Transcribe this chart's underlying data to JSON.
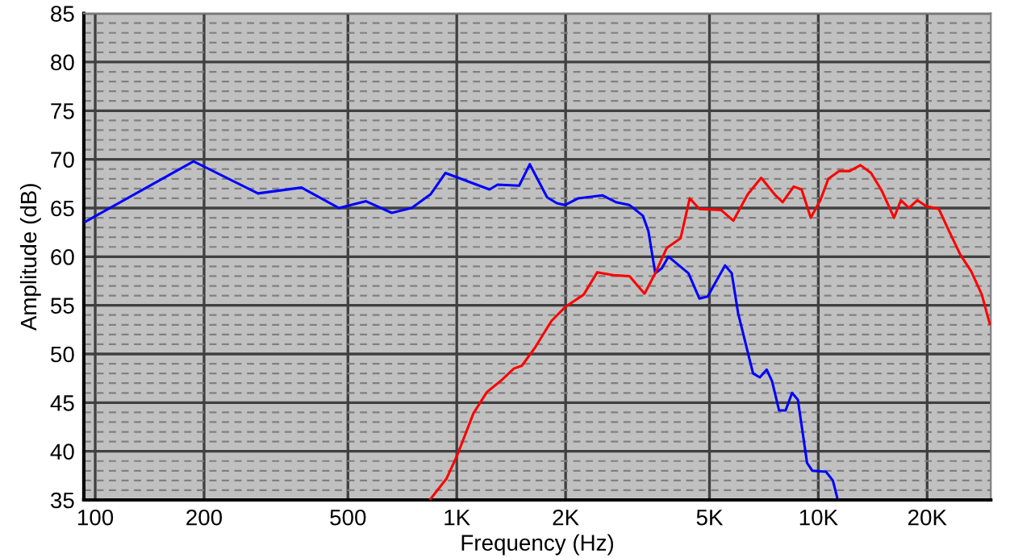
{
  "chart_data": {
    "type": "line",
    "xlabel": "Frequency (Hz)",
    "ylabel": "Amplitude (dB)",
    "log": "x",
    "xlim": [
      93,
      30000
    ],
    "ylim": [
      35,
      85
    ],
    "xticks": [
      100,
      200,
      500,
      {
        "value": 1000,
        "label": "1K"
      },
      {
        "value": 2000,
        "label": "2K"
      },
      {
        "value": 5000,
        "label": "5K"
      },
      {
        "value": 10000,
        "label": "10K"
      },
      {
        "value": 20000,
        "label": "20K"
      }
    ],
    "yticks": [
      35,
      {
        "value": 36,
        "label": null
      },
      {
        "value": 37,
        "label": null
      },
      {
        "value": 38,
        "label": null
      },
      {
        "value": 39,
        "label": null
      },
      40,
      {
        "value": 41,
        "label": null
      },
      {
        "value": 42,
        "label": null
      },
      {
        "value": 43,
        "label": null
      },
      {
        "value": 44,
        "label": null
      },
      45,
      {
        "value": 46,
        "label": null
      },
      {
        "value": 47,
        "label": null
      },
      {
        "value": 48,
        "label": null
      },
      {
        "value": 49,
        "label": null
      },
      50,
      {
        "value": 51,
        "label": null
      },
      {
        "value": 52,
        "label": null
      },
      {
        "value": 53,
        "label": null
      },
      {
        "value": 54,
        "label": null
      },
      55,
      {
        "value": 56,
        "label": null
      },
      {
        "value": 57,
        "label": null
      },
      {
        "value": 58,
        "label": null
      },
      {
        "value": 59,
        "label": null
      },
      60,
      {
        "value": 61,
        "label": null
      },
      {
        "value": 62,
        "label": null
      },
      {
        "value": 63,
        "label": null
      },
      {
        "value": 64,
        "label": null
      },
      65,
      {
        "value": 66,
        "label": null
      },
      {
        "value": 67,
        "label": null
      },
      {
        "value": 68,
        "label": null
      },
      {
        "value": 69,
        "label": null
      },
      70,
      {
        "value": 71,
        "label": null
      },
      {
        "value": 72,
        "label": null
      },
      {
        "value": 73,
        "label": null
      },
      {
        "value": 74,
        "label": null
      },
      75,
      {
        "value": 76,
        "label": null
      },
      {
        "value": 77,
        "label": null
      },
      {
        "value": 78,
        "label": null
      },
      {
        "value": 79,
        "label": null
      },
      80,
      {
        "value": 81,
        "label": null
      },
      {
        "value": 82,
        "label": null
      },
      {
        "value": 83,
        "label": null
      },
      {
        "value": 84,
        "label": null
      },
      85
    ],
    "grid": true,
    "line_style": "solid",
    "series": [
      {
        "color": "#0000ff",
        "x": [
          94,
          187,
          282,
          372,
          472,
          561,
          661,
          750,
          846,
          930,
          1232,
          1297,
          1488,
          1592,
          1778,
          1892,
          1991,
          2168,
          2531,
          2755,
          3005,
          3273,
          3390,
          3540,
          3690,
          3852,
          4374,
          4688,
          4940,
          5521,
          5760,
          6000,
          6380,
          6600,
          6890,
          7200,
          7450,
          7790,
          8120,
          8460,
          8780,
          9310,
          9630,
          10500,
          10970,
          11270
        ],
        "values": [
          63.6,
          69.8,
          66.5,
          67.1,
          65.0,
          65.7,
          64.5,
          65.0,
          66.4,
          68.6,
          66.9,
          67.4,
          67.3,
          69.5,
          66.1,
          65.5,
          65.3,
          66.0,
          66.3,
          65.6,
          65.3,
          64.2,
          62.6,
          58.3,
          58.8,
          60.0,
          58.3,
          55.7,
          55.9,
          59.1,
          58.3,
          54.2,
          50.2,
          48.0,
          47.6,
          48.4,
          47.2,
          44.2,
          44.2,
          46.0,
          45.3,
          38.8,
          38.0,
          37.9,
          37.0,
          35.3
        ]
      },
      {
        "color": "#ff0000",
        "x": [
          846,
          937,
          1003,
          1112,
          1212,
          1320,
          1438,
          1514,
          1649,
          1828,
          1991,
          2244,
          2447,
          2711,
          3005,
          3306,
          3540,
          3810,
          4160,
          4410,
          4690,
          5380,
          5820,
          6380,
          6950,
          7570,
          7970,
          8550,
          8990,
          9530,
          10130,
          10660,
          11430,
          12210,
          13080,
          13990,
          14970,
          16200,
          16920,
          17820,
          18780,
          19850,
          21540,
          23010,
          24710,
          26470,
          28330,
          29800
        ],
        "values": [
          35.1,
          37.2,
          39.6,
          43.9,
          46.1,
          47.2,
          48.5,
          48.8,
          50.7,
          53.4,
          54.8,
          56.1,
          58.4,
          58.1,
          58.0,
          56.2,
          58.3,
          60.9,
          61.9,
          66.0,
          64.9,
          64.8,
          63.7,
          66.4,
          68.1,
          66.4,
          65.6,
          67.2,
          66.9,
          64.0,
          65.8,
          68.0,
          68.8,
          68.8,
          69.4,
          68.6,
          66.8,
          64.0,
          65.8,
          65.0,
          65.8,
          65.2,
          64.9,
          62.6,
          60.2,
          58.5,
          56.1,
          53.1
        ]
      }
    ]
  }
}
